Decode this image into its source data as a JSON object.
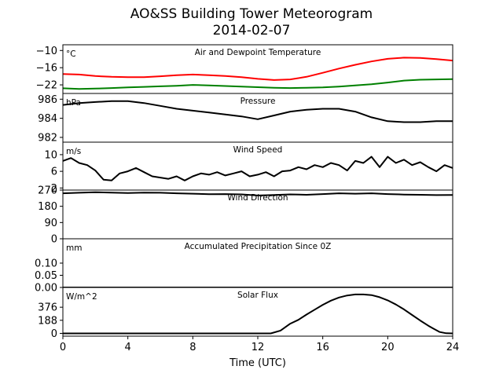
{
  "figure": {
    "title_line1": "AO&SS Building Tower Meteorogram",
    "title_line2": "2014-02-07",
    "xlabel": "Time (UTC)",
    "xlim": [
      0,
      24
    ],
    "xticks": [
      0,
      4,
      8,
      12,
      16,
      20,
      24
    ]
  },
  "chart_data": [
    {
      "type": "line",
      "title": "Air and Dewpoint Temperature",
      "ylabel": "°C",
      "ylim": [
        -25,
        -8
      ],
      "ytick_values": [
        -22,
        -16,
        -10
      ],
      "ytick_labels": [
        "−22",
        "−16",
        "−10"
      ],
      "series": [
        {
          "color": "#ff0000",
          "x": [
            0,
            1,
            2,
            3,
            4,
            5,
            6,
            7,
            8,
            9,
            10,
            11,
            12,
            13,
            14,
            15,
            16,
            17,
            18,
            19,
            20,
            21,
            22,
            23,
            24
          ],
          "y": [
            -18.2,
            -18.4,
            -18.9,
            -19.2,
            -19.3,
            -19.3,
            -19.0,
            -18.6,
            -18.4,
            -18.6,
            -18.9,
            -19.3,
            -19.9,
            -20.3,
            -20.1,
            -19.2,
            -17.8,
            -16.3,
            -15.0,
            -13.8,
            -12.9,
            -12.5,
            -12.6,
            -13.0,
            -13.5
          ]
        },
        {
          "color": "#008000",
          "x": [
            0,
            1,
            2,
            3,
            4,
            5,
            6,
            7,
            8,
            9,
            10,
            11,
            12,
            13,
            14,
            15,
            16,
            17,
            18,
            19,
            20,
            21,
            22,
            23,
            24
          ],
          "y": [
            -23.2,
            -23.4,
            -23.3,
            -23.1,
            -22.9,
            -22.7,
            -22.5,
            -22.3,
            -22.0,
            -22.2,
            -22.4,
            -22.6,
            -22.8,
            -23.0,
            -23.1,
            -23.0,
            -22.9,
            -22.6,
            -22.2,
            -21.8,
            -21.2,
            -20.5,
            -20.2,
            -20.1,
            -20.0
          ]
        }
      ]
    },
    {
      "type": "line",
      "title": "Pressure",
      "ylabel": "hPa",
      "ylim": [
        981.5,
        986.6
      ],
      "ytick_values": [
        982,
        984,
        986
      ],
      "ytick_labels": [
        "982",
        "984",
        "986"
      ],
      "series": [
        {
          "color": "#000000",
          "x": [
            0,
            1,
            2,
            3,
            4,
            5,
            6,
            7,
            8,
            9,
            10,
            11,
            12,
            13,
            14,
            15,
            16,
            17,
            18,
            19,
            20,
            21,
            22,
            23,
            24
          ],
          "y": [
            985.4,
            985.6,
            985.7,
            985.8,
            985.8,
            985.6,
            985.3,
            985.0,
            984.8,
            984.6,
            984.4,
            984.2,
            983.9,
            984.3,
            984.7,
            984.9,
            985.0,
            985.0,
            984.7,
            984.1,
            983.7,
            983.6,
            983.6,
            983.7,
            983.7
          ]
        }
      ]
    },
    {
      "type": "line",
      "title": "Wind Speed",
      "ylabel": "m/s",
      "ylim": [
        1.5,
        13
      ],
      "ytick_values": [
        2,
        6,
        10
      ],
      "ytick_labels": [
        "2",
        "6",
        "10"
      ],
      "series": [
        {
          "color": "#000000",
          "x": [
            0,
            0.5,
            1,
            1.5,
            2,
            2.5,
            3,
            3.5,
            4,
            4.5,
            5,
            5.5,
            6,
            6.5,
            7,
            7.5,
            8,
            8.5,
            9,
            9.5,
            10,
            10.5,
            11,
            11.5,
            12,
            12.5,
            13,
            13.5,
            14,
            14.5,
            15,
            15.5,
            16,
            16.5,
            17,
            17.5,
            18,
            18.5,
            19,
            19.5,
            20,
            20.5,
            21,
            21.5,
            22,
            22.5,
            23,
            23.5,
            24
          ],
          "y": [
            8.5,
            9.2,
            8.0,
            7.5,
            6.2,
            4.0,
            3.8,
            5.5,
            6.0,
            6.8,
            5.8,
            4.8,
            4.5,
            4.2,
            4.8,
            3.8,
            4.8,
            5.5,
            5.2,
            5.8,
            5.0,
            5.5,
            6.0,
            4.8,
            5.2,
            5.8,
            4.8,
            6.0,
            6.2,
            7.0,
            6.5,
            7.5,
            7.0,
            8.0,
            7.5,
            6.2,
            8.5,
            8.0,
            9.5,
            7.0,
            9.5,
            8.0,
            8.8,
            7.5,
            8.2,
            7.0,
            6.0,
            7.5,
            6.8
          ]
        }
      ]
    },
    {
      "type": "line",
      "title": "Wind Direction",
      "ylabel": "",
      "ylim": [
        0,
        270
      ],
      "ytick_values": [
        0,
        90,
        180,
        270
      ],
      "ytick_labels": [
        "0",
        "90",
        "180",
        "270"
      ],
      "series": [
        {
          "color": "#000000",
          "x": [
            0,
            1,
            2,
            3,
            4,
            5,
            6,
            7,
            8,
            9,
            10,
            11,
            12,
            13,
            14,
            15,
            16,
            17,
            18,
            19,
            20,
            21,
            22,
            23,
            24
          ],
          "y": [
            252,
            255,
            258,
            256,
            254,
            256,
            255,
            252,
            250,
            247,
            248,
            246,
            240,
            243,
            246,
            244,
            248,
            252,
            250,
            252,
            248,
            245,
            244,
            242,
            243
          ]
        }
      ]
    },
    {
      "type": "line",
      "title": "Accumulated Precipitation Since 0Z",
      "ylabel": "mm",
      "ylim": [
        0,
        0.2
      ],
      "ytick_values": [
        0.0,
        0.05,
        0.1
      ],
      "ytick_labels": [
        "0.00",
        "0.05",
        "0.10"
      ],
      "series": [
        {
          "color": "#000000",
          "x": [
            0,
            24
          ],
          "y": [
            0,
            0
          ]
        }
      ]
    },
    {
      "type": "line",
      "title": "Solar Flux",
      "ylabel": "W/m^2",
      "ylim": [
        -40,
        660
      ],
      "ytick_values": [
        0,
        188,
        376
      ],
      "ytick_labels": [
        "0",
        "188",
        "376"
      ],
      "series": [
        {
          "color": "#000000",
          "x": [
            0,
            12.8,
            13.4,
            14.0,
            14.5,
            15.0,
            15.5,
            16.0,
            16.5,
            17.0,
            17.5,
            18.0,
            18.5,
            19.0,
            19.5,
            20.0,
            20.5,
            21.0,
            21.5,
            22.0,
            22.5,
            22.8,
            23.2,
            23.6,
            24
          ],
          "y": [
            0,
            0,
            40,
            140,
            195,
            270,
            340,
            410,
            470,
            515,
            545,
            560,
            560,
            550,
            520,
            475,
            415,
            345,
            265,
            185,
            110,
            70,
            20,
            2,
            0
          ]
        }
      ]
    }
  ]
}
